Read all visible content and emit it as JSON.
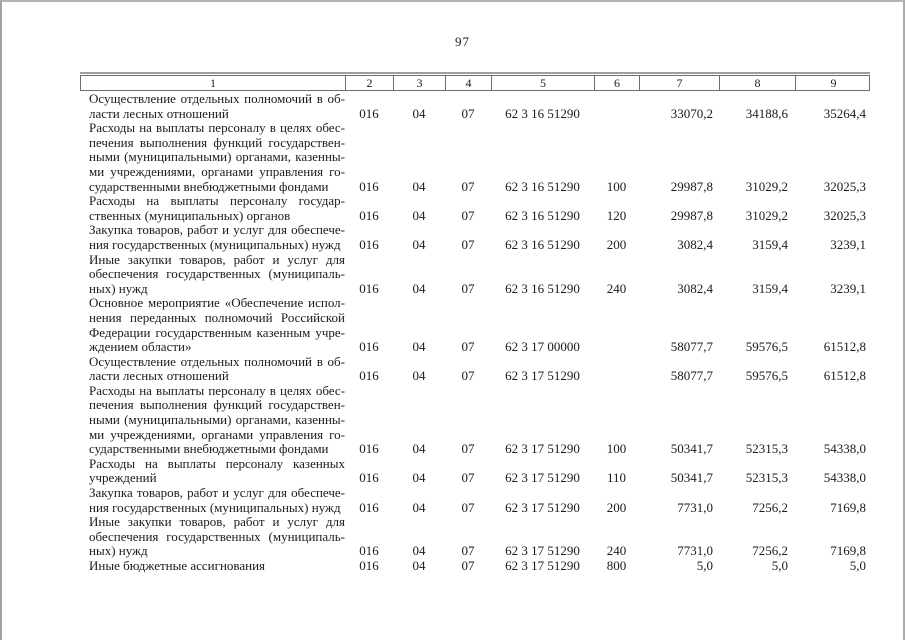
{
  "page": {
    "number": "97"
  },
  "table": {
    "header_labels": [
      "1",
      "2",
      "3",
      "4",
      "5",
      "6",
      "7",
      "8",
      "9"
    ],
    "rows": [
      {
        "name_lines": [
          "Осуществление отдельных полномочий в об-",
          "ласти лесных отношений"
        ],
        "cols": [
          "016",
          "04",
          "07",
          "62 3 16 51290",
          "",
          "33070,2",
          "34188,6",
          "35264,4"
        ]
      },
      {
        "name_lines": [
          "Расходы на выплаты персоналу в целях обес-",
          "печения выполнения функций государствен-",
          "ными (муниципальными) органами, казенны-",
          "ми учреждениями, органами управления го-",
          "сударственными внебюджетными фондами"
        ],
        "cols": [
          "016",
          "04",
          "07",
          "62 3 16 51290",
          "100",
          "29987,8",
          "31029,2",
          "32025,3"
        ]
      },
      {
        "name_lines": [
          "Расходы на выплаты персоналу государ-",
          "ственных (муниципальных) органов"
        ],
        "cols": [
          "016",
          "04",
          "07",
          "62 3 16 51290",
          "120",
          "29987,8",
          "31029,2",
          "32025,3"
        ]
      },
      {
        "name_lines": [
          "Закупка товаров, работ и услуг для обеспече-",
          "ния государственных (муниципальных) нужд"
        ],
        "cols": [
          "016",
          "04",
          "07",
          "62 3 16 51290",
          "200",
          "3082,4",
          "3159,4",
          "3239,1"
        ]
      },
      {
        "name_lines": [
          "Иные закупки товаров, работ и услуг для",
          "обеспечения государственных (муниципаль-",
          "ных) нужд"
        ],
        "cols": [
          "016",
          "04",
          "07",
          "62 3 16 51290",
          "240",
          "3082,4",
          "3159,4",
          "3239,1"
        ]
      },
      {
        "name_lines": [
          "Основное мероприятие «Обеспечение испол-",
          "нения переданных полномочий Российской",
          "Федерации государственным казенным учре-",
          "ждением области»"
        ],
        "cols": [
          "016",
          "04",
          "07",
          "62 3 17 00000",
          "",
          "58077,7",
          "59576,5",
          "61512,8"
        ]
      },
      {
        "name_lines": [
          "Осуществление отдельных полномочий в об-",
          "ласти лесных отношений"
        ],
        "cols": [
          "016",
          "04",
          "07",
          "62 3 17 51290",
          "",
          "58077,7",
          "59576,5",
          "61512,8"
        ]
      },
      {
        "name_lines": [
          "Расходы на выплаты персоналу в целях обес-",
          "печения выполнения функций государствен-",
          "ными (муниципальными) органами, казенны-",
          "ми учреждениями, органами управления го-",
          "сударственными внебюджетными фондами"
        ],
        "cols": [
          "016",
          "04",
          "07",
          "62 3 17 51290",
          "100",
          "50341,7",
          "52315,3",
          "54338,0"
        ]
      },
      {
        "name_lines": [
          "Расходы на выплаты персоналу казенных",
          "учреждений"
        ],
        "cols": [
          "016",
          "04",
          "07",
          "62 3 17 51290",
          "110",
          "50341,7",
          "52315,3",
          "54338,0"
        ]
      },
      {
        "name_lines": [
          "Закупка товаров, работ и услуг для обеспече-",
          "ния государственных (муниципальных) нужд"
        ],
        "cols": [
          "016",
          "04",
          "07",
          "62 3 17 51290",
          "200",
          "7731,0",
          "7256,2",
          "7169,8"
        ]
      },
      {
        "name_lines": [
          "Иные закупки товаров, работ и услуг для",
          "обеспечения государственных (муниципаль-",
          "ных) нужд"
        ],
        "cols": [
          "016",
          "04",
          "07",
          "62 3 17 51290",
          "240",
          "7731,0",
          "7256,2",
          "7169,8"
        ]
      },
      {
        "name_lines": [
          "Иные бюджетные ассигнования"
        ],
        "cols": [
          "016",
          "04",
          "07",
          "62 3 17 51290",
          "800",
          "5,0",
          "5,0",
          "5,0"
        ]
      }
    ]
  }
}
